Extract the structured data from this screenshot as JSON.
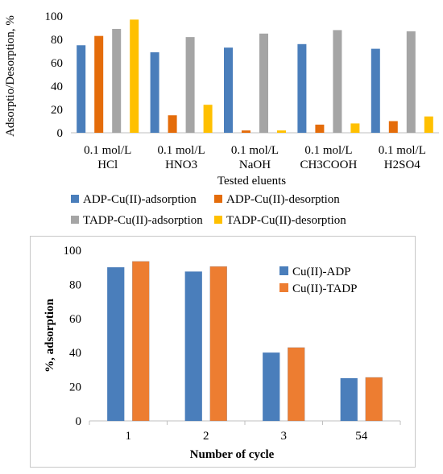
{
  "chart_data": [
    {
      "type": "bar",
      "title": "",
      "xlabel": "Tested eluents",
      "ylabel": "Adsorptio/Desorption, %",
      "ylim": [
        0,
        100
      ],
      "yticks": [
        0,
        20,
        40,
        60,
        80,
        100
      ],
      "grid": false,
      "legend": "bottom",
      "categories": [
        [
          "0.1 mol/L",
          "HCl"
        ],
        [
          "0.1 mol/L",
          "HNO3"
        ],
        [
          "0.1 mol/L",
          "NaOH"
        ],
        [
          "0.1 mol/L",
          "CH3COOH"
        ],
        [
          "0.1 mol/L",
          "H2SO4"
        ]
      ],
      "series": [
        {
          "name": "ADP-Cu(II)-adsorption",
          "color": "#4a7ebb",
          "values": [
            75,
            69,
            73,
            76,
            72
          ]
        },
        {
          "name": "ADP-Cu(II)-desorption",
          "color": "#e46c0a",
          "values": [
            83,
            15,
            2,
            7,
            10
          ]
        },
        {
          "name": "TADP-Cu(II)-adsorption",
          "color": "#a5a5a5",
          "values": [
            89,
            82,
            85,
            88,
            87
          ]
        },
        {
          "name": "TADP-Cu(II)-desorption",
          "color": "#ffc000",
          "values": [
            97,
            24,
            2,
            8,
            14
          ]
        }
      ]
    },
    {
      "type": "bar",
      "title": "",
      "xlabel": "Number  of cycle",
      "ylabel": "%, adsorption",
      "ylim": [
        0,
        100
      ],
      "yticks": [
        0,
        20,
        40,
        60,
        80,
        100
      ],
      "grid": false,
      "legend": "top-right",
      "categories": [
        "1",
        "2",
        "3",
        "54"
      ],
      "series": [
        {
          "name": "Cu(II)-ADP",
          "color": "#4a7ebb",
          "values": [
            90,
            87.5,
            40,
            25
          ]
        },
        {
          "name": "Cu(II)-TADP",
          "color": "#ed7d31",
          "values": [
            93.5,
            90.5,
            43,
            25.5
          ]
        }
      ]
    }
  ]
}
